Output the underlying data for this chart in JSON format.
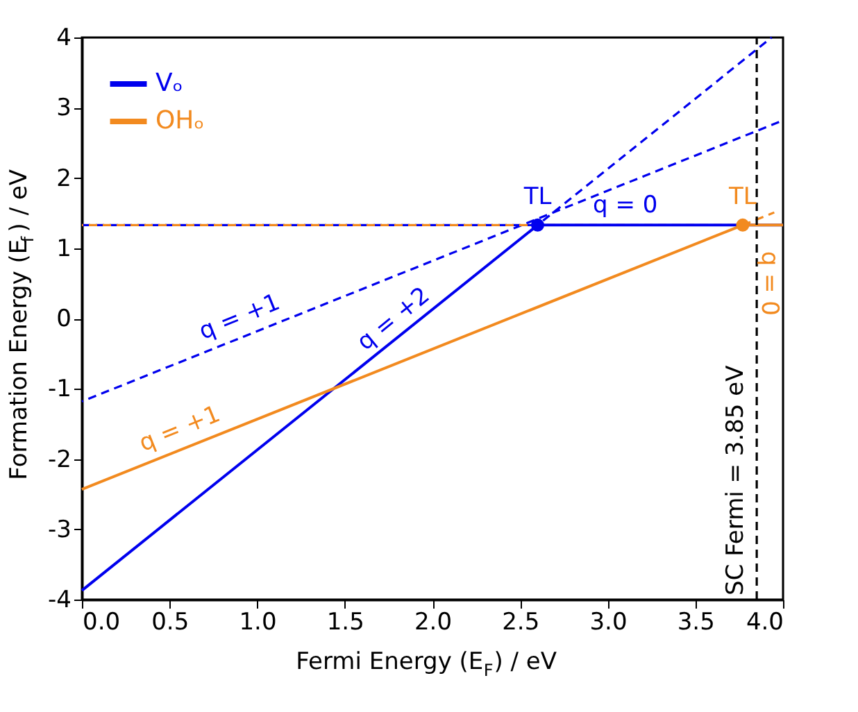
{
  "chart_data": {
    "type": "line",
    "xlabel": "Fermi Energy (E$_{F}$) / eV",
    "ylabel": "Formation Energy (E$_{f}$) / eV",
    "xlim": [
      0,
      4
    ],
    "xticks": [
      {
        "value": 0,
        "label": "0.0"
      },
      {
        "value": 0.5,
        "label": "0.5"
      },
      {
        "value": 1,
        "label": "1.0"
      },
      {
        "value": 1.5,
        "label": "1.5"
      },
      {
        "value": 2,
        "label": "2.0"
      },
      {
        "value": 2.5,
        "label": "2.5"
      },
      {
        "value": 3,
        "label": "3.0"
      },
      {
        "value": 3.5,
        "label": "3.5"
      },
      {
        "value": 4,
        "label": "4.0"
      }
    ],
    "ylim": [
      -4,
      4
    ],
    "yticks": [
      -4,
      -3,
      -2,
      -1,
      0,
      1,
      2,
      3,
      4
    ],
    "grid": false,
    "legend": "top left",
    "marker": "none",
    "series": [
      {
        "name": "Vₒ",
        "color": "#0000ee",
        "line_style": "solid",
        "x": [
          0,
          2.6,
          4.0
        ],
        "values": [
          -3.87,
          1.33,
          1.33
        ]
      },
      {
        "color": "#0000ee",
        "line_style": "dashed",
        "x": [
          0,
          4.0
        ],
        "values": [
          -1.18,
          2.82
        ]
      },
      {
        "color": "#0000ee",
        "line_style": "dashed",
        "x": [
          0,
          2.6
        ],
        "values": [
          1.33,
          1.33
        ]
      },
      {
        "color": "#0000ee",
        "line_style": "dashed",
        "x": [
          2.6,
          3.935
        ],
        "values": [
          1.33,
          4.0
        ]
      },
      {
        "name": "OHₒ",
        "color": "#f28a1f",
        "line_style": "solid",
        "x": [
          0,
          3.77,
          4.0
        ],
        "values": [
          -2.43,
          1.33,
          1.33
        ]
      },
      {
        "color": "#f28a1f",
        "line_style": "dashed",
        "x": [
          0,
          3.77
        ],
        "values": [
          1.33,
          1.33
        ]
      },
      {
        "color": "#f28a1f",
        "line_style": "dashed",
        "x": [
          3.77,
          3.95
        ],
        "values": [
          1.33,
          1.51
        ]
      },
      {
        "type": "scatter",
        "marker": "circle",
        "color": "#0000ee",
        "x": [
          2.6
        ],
        "values": [
          1.33
        ]
      },
      {
        "type": "scatter",
        "marker": "circle",
        "color": "#f28a1f",
        "x": [
          3.77
        ],
        "values": [
          1.33
        ]
      }
    ],
    "ref_lines": [
      {
        "axis": "x",
        "value": 3.85,
        "label": "SC Fermi = 3.85 eV",
        "color": "#000000",
        "line_style": "dashed"
      }
    ],
    "annotations": [
      {
        "text": "q = +1",
        "x": 1.0,
        "y": -0.18
      },
      {
        "text": "q = +2",
        "x": 1.9,
        "y": -0.07
      },
      {
        "text": "q = 0",
        "x": 3.1,
        "y": 1.33
      },
      {
        "text": "TL",
        "x": 2.6,
        "y": 1.33
      },
      {
        "text": "TL",
        "x": 3.77,
        "y": 1.33
      },
      {
        "text": "q = 0",
        "x": 4.0,
        "y": 1.33
      },
      {
        "text": "q = +1",
        "x": 0.6,
        "y": -1.83
      }
    ]
  }
}
